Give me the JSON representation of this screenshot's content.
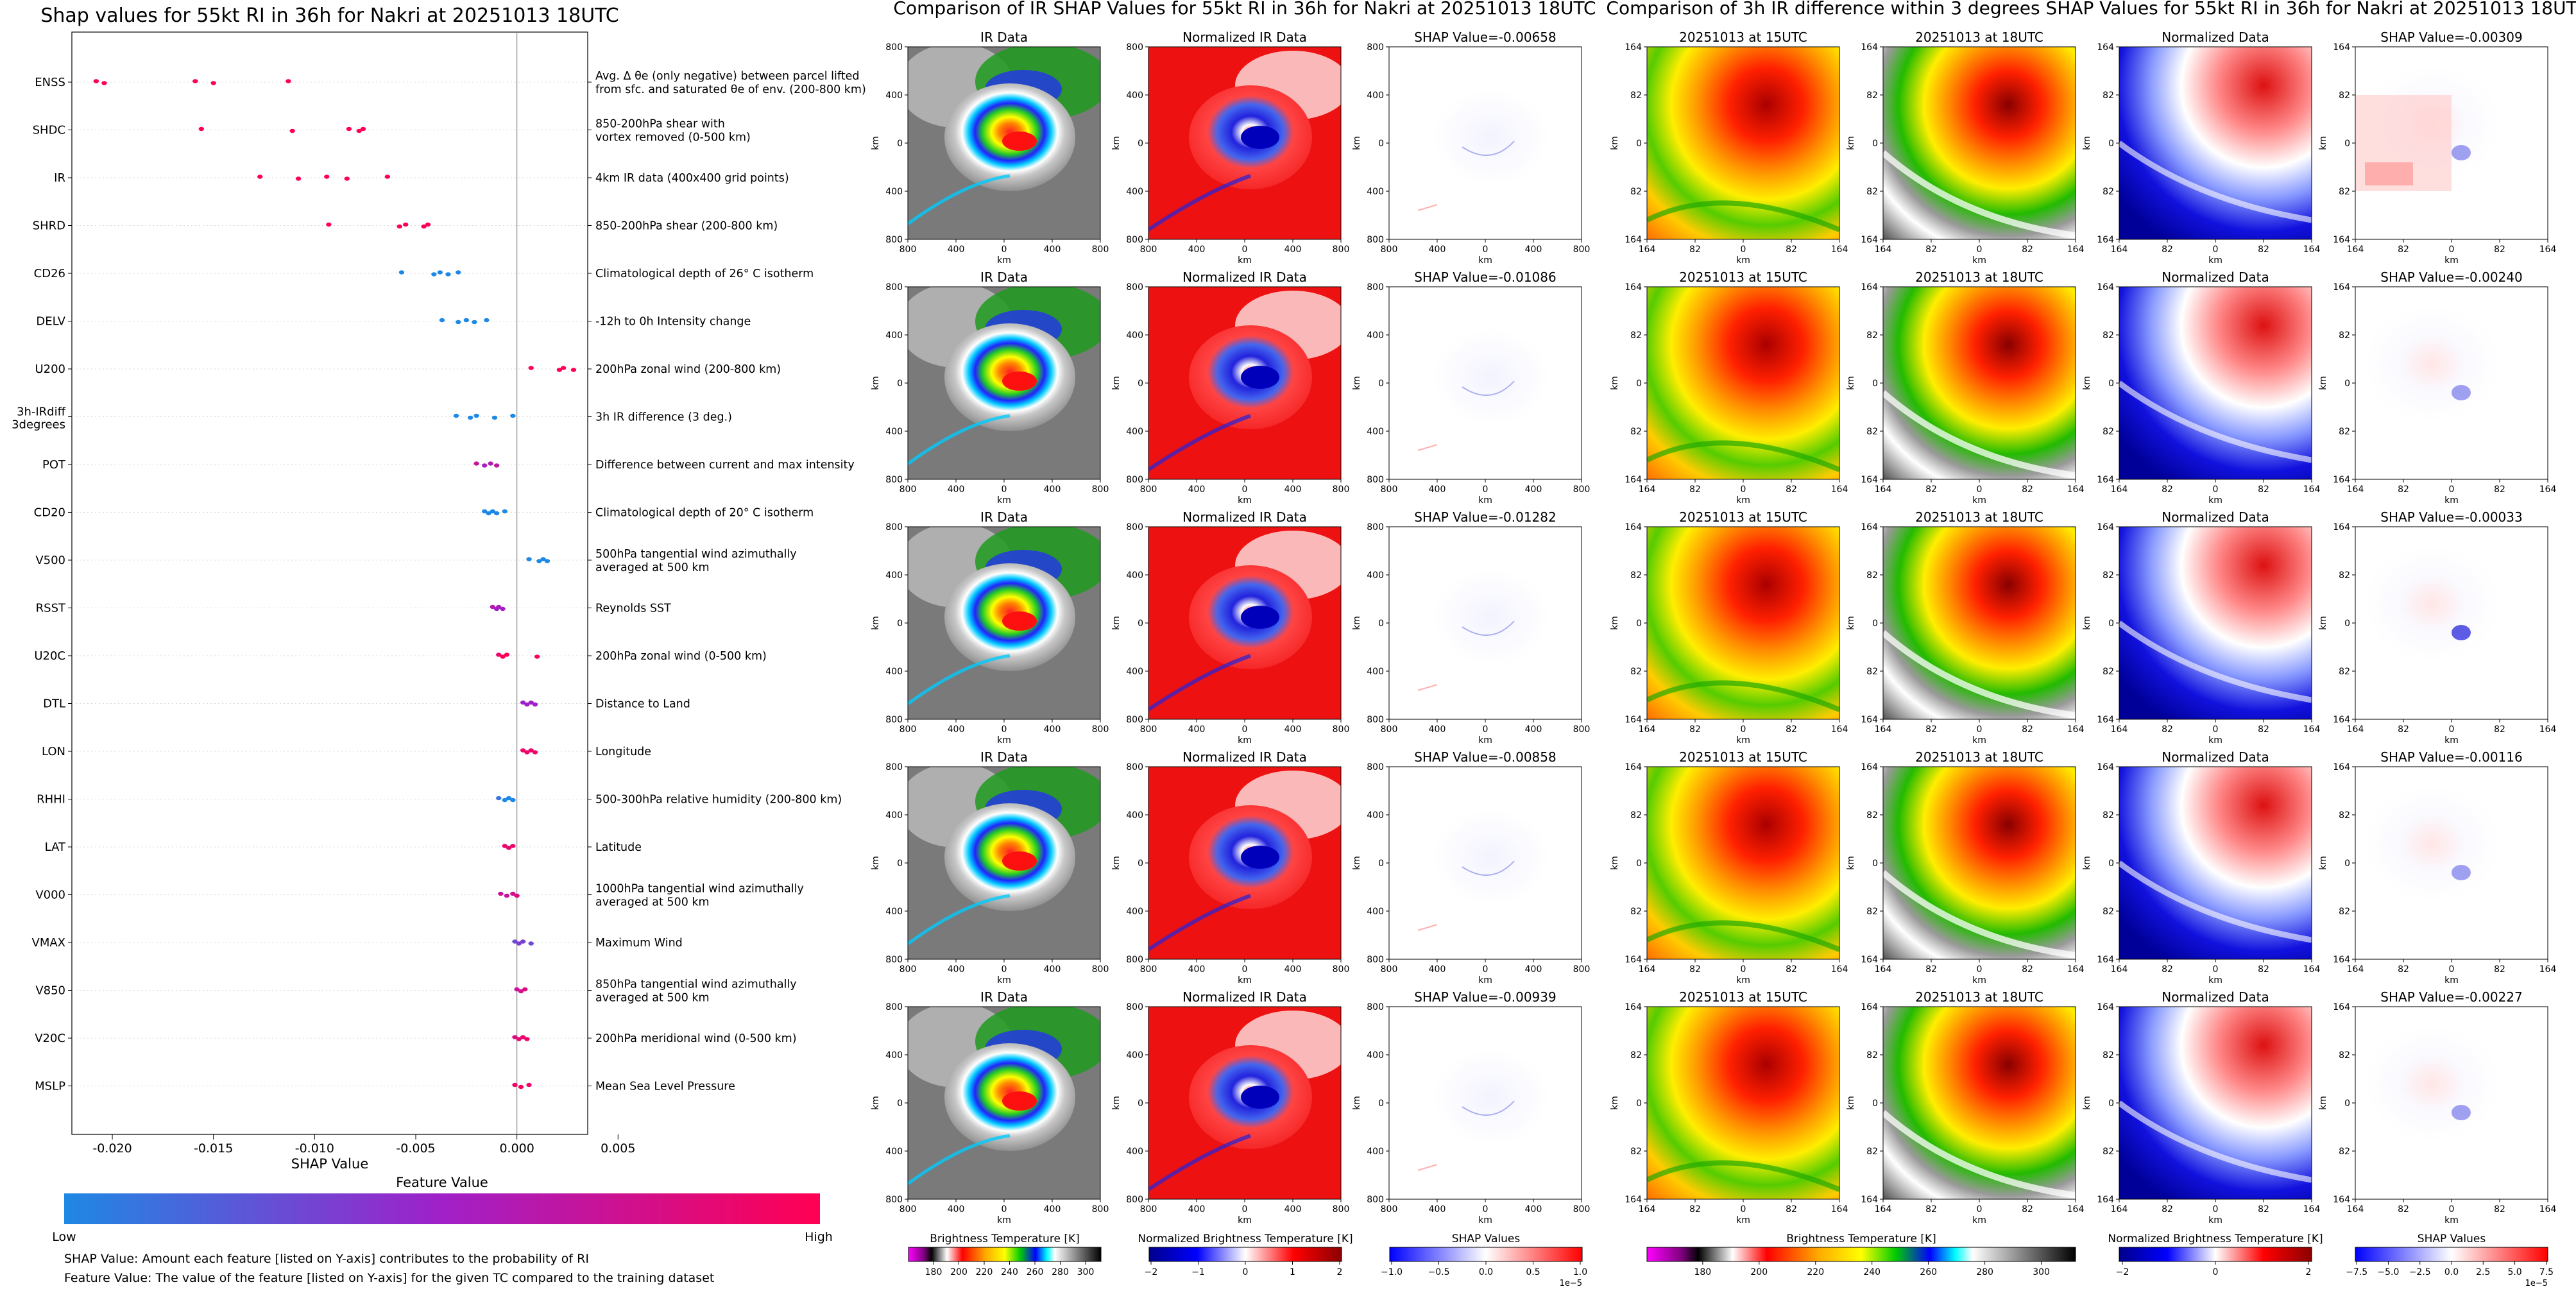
{
  "summary": {
    "title": "Shap values for 55kt RI in 36h for Nakri at 20251013 18UTC",
    "xlabel": "SHAP Value",
    "xticks": [
      "-0.020",
      "-0.015",
      "-0.010",
      "-0.005",
      "0.000",
      "0.005"
    ],
    "colorbar_title": "Feature Value",
    "colorbar_low": "Low",
    "colorbar_high": "High",
    "note_shap": "SHAP Value: Amount each feature [listed on Y-axis] contributes to the probability of RI",
    "note_feature": "Feature Value: The value of the feature [listed on Y-axis] for the given TC compared to the training dataset",
    "colors": {
      "low": "#1e88e5",
      "mid": "#a020c8",
      "high": "#ff0052"
    }
  },
  "chart_data": {
    "type": "scatter",
    "title": "Shap values for 55kt RI in 36h for Nakri at 20251013 18UTC",
    "xlabel": "SHAP Value",
    "xlim": [
      -0.022,
      0.0035
    ],
    "features": [
      {
        "name": "ENSS",
        "desc": [
          "Avg. Δ θe (only negative) between parcel lifted",
          "from sfc. and saturated θe of env. (200-800 km)"
        ],
        "points": [
          {
            "x": -0.0208,
            "v": 1.0
          },
          {
            "x": -0.0204,
            "v": 1.0
          },
          {
            "x": -0.0159,
            "v": 1.0
          },
          {
            "x": -0.015,
            "v": 1.0
          },
          {
            "x": -0.0113,
            "v": 1.0
          }
        ]
      },
      {
        "name": "SHDC",
        "desc": [
          "850-200hPa shear with",
          "vortex removed (0-500 km)"
        ],
        "points": [
          {
            "x": -0.0156,
            "v": 1.0
          },
          {
            "x": -0.0111,
            "v": 1.0
          },
          {
            "x": -0.0083,
            "v": 1.0
          },
          {
            "x": -0.0078,
            "v": 1.0
          },
          {
            "x": -0.0076,
            "v": 1.0
          }
        ]
      },
      {
        "name": "IR",
        "desc": [
          "4km IR data (400x400 grid points)"
        ],
        "points": [
          {
            "x": -0.0127,
            "v": 1.0
          },
          {
            "x": -0.0108,
            "v": 1.0
          },
          {
            "x": -0.0094,
            "v": 1.0
          },
          {
            "x": -0.0084,
            "v": 1.0
          },
          {
            "x": -0.0064,
            "v": 1.0
          }
        ]
      },
      {
        "name": "SHRD",
        "desc": [
          "850-200hPa shear (200-800 km)"
        ],
        "points": [
          {
            "x": -0.0093,
            "v": 1.0
          },
          {
            "x": -0.0058,
            "v": 1.0
          },
          {
            "x": -0.0055,
            "v": 1.0
          },
          {
            "x": -0.0046,
            "v": 1.0
          },
          {
            "x": -0.0044,
            "v": 1.0
          }
        ]
      },
      {
        "name": "CD26",
        "desc": [
          "Climatological depth of 26° C isotherm"
        ],
        "points": [
          {
            "x": -0.0057,
            "v": 0.0
          },
          {
            "x": -0.0041,
            "v": 0.0
          },
          {
            "x": -0.0038,
            "v": 0.0
          },
          {
            "x": -0.0034,
            "v": 0.0
          },
          {
            "x": -0.0029,
            "v": 0.0
          }
        ]
      },
      {
        "name": "DELV",
        "desc": [
          "-12h to 0h Intensity change"
        ],
        "points": [
          {
            "x": -0.0037,
            "v": 0.0
          },
          {
            "x": -0.0029,
            "v": 0.0
          },
          {
            "x": -0.0025,
            "v": 0.0
          },
          {
            "x": -0.0021,
            "v": 0.0
          },
          {
            "x": -0.0015,
            "v": 0.0
          }
        ]
      },
      {
        "name": "U200",
        "desc": [
          "200hPa zonal wind (200-800 km)"
        ],
        "points": [
          {
            "x": 0.0007,
            "v": 1.0
          },
          {
            "x": 0.0021,
            "v": 1.0
          },
          {
            "x": 0.0023,
            "v": 1.0
          },
          {
            "x": 0.0028,
            "v": 1.0
          }
        ]
      },
      {
        "name": "3h-IRdiff 3degrees",
        "desc": [
          "3h IR difference (3 deg.)"
        ],
        "points": [
          {
            "x": -0.003,
            "v": 0.0
          },
          {
            "x": -0.0023,
            "v": 0.0
          },
          {
            "x": -0.002,
            "v": 0.0
          },
          {
            "x": -0.0011,
            "v": 0.0
          },
          {
            "x": -0.0002,
            "v": 0.0
          }
        ]
      },
      {
        "name": "POT",
        "desc": [
          "Difference between current and max intensity"
        ],
        "points": [
          {
            "x": -0.002,
            "v": 0.7
          },
          {
            "x": -0.0016,
            "v": 0.55
          },
          {
            "x": -0.0013,
            "v": 0.6
          },
          {
            "x": -0.001,
            "v": 0.65
          }
        ]
      },
      {
        "name": "CD20",
        "desc": [
          "Climatological depth of 20° C isotherm"
        ],
        "points": [
          {
            "x": -0.0016,
            "v": 0.0
          },
          {
            "x": -0.0014,
            "v": 0.0
          },
          {
            "x": -0.0012,
            "v": 0.0
          },
          {
            "x": -0.001,
            "v": 0.0
          },
          {
            "x": -0.0006,
            "v": 0.0
          }
        ]
      },
      {
        "name": "V500",
        "desc": [
          "500hPa tangential wind azimuthally",
          "averaged at 500 km"
        ],
        "points": [
          {
            "x": 0.0006,
            "v": 0.0
          },
          {
            "x": 0.0011,
            "v": 0.0
          },
          {
            "x": 0.0013,
            "v": 0.0
          },
          {
            "x": 0.0015,
            "v": 0.0
          }
        ]
      },
      {
        "name": "RSST",
        "desc": [
          "Reynolds SST"
        ],
        "points": [
          {
            "x": -0.0012,
            "v": 0.6
          },
          {
            "x": -0.001,
            "v": 0.5
          },
          {
            "x": -0.0009,
            "v": 0.55
          },
          {
            "x": -0.0007,
            "v": 0.5
          }
        ]
      },
      {
        "name": "U20C",
        "desc": [
          "200hPa zonal wind (0-500 km)"
        ],
        "points": [
          {
            "x": -0.0009,
            "v": 0.9
          },
          {
            "x": -0.0007,
            "v": 1.0
          },
          {
            "x": -0.0005,
            "v": 1.0
          },
          {
            "x": 0.001,
            "v": 1.0
          }
        ]
      },
      {
        "name": "DTL",
        "desc": [
          "Distance to Land"
        ],
        "points": [
          {
            "x": 0.0003,
            "v": 0.5
          },
          {
            "x": 0.0005,
            "v": 0.5
          },
          {
            "x": 0.0007,
            "v": 0.5
          },
          {
            "x": 0.0009,
            "v": 0.5
          }
        ]
      },
      {
        "name": "LON",
        "desc": [
          "Longitude"
        ],
        "points": [
          {
            "x": 0.0003,
            "v": 0.9
          },
          {
            "x": 0.0005,
            "v": 0.9
          },
          {
            "x": 0.0007,
            "v": 0.9
          },
          {
            "x": 0.0009,
            "v": 0.9
          }
        ]
      },
      {
        "name": "RHHI",
        "desc": [
          "500-300hPa relative humidity (200-800 km)"
        ],
        "points": [
          {
            "x": -0.0009,
            "v": 0.1
          },
          {
            "x": -0.0006,
            "v": 0.0
          },
          {
            "x": -0.0004,
            "v": 0.0
          },
          {
            "x": -0.0002,
            "v": 0.0
          }
        ]
      },
      {
        "name": "LAT",
        "desc": [
          "Latitude"
        ],
        "points": [
          {
            "x": -0.0006,
            "v": 0.9
          },
          {
            "x": -0.0004,
            "v": 0.9
          },
          {
            "x": -0.0002,
            "v": 0.9
          }
        ]
      },
      {
        "name": "V000",
        "desc": [
          "1000hPa tangential wind azimuthally",
          "averaged at 500 km"
        ],
        "points": [
          {
            "x": -0.0008,
            "v": 0.7
          },
          {
            "x": -0.0005,
            "v": 0.7
          },
          {
            "x": -0.0002,
            "v": 0.75
          },
          {
            "x": 0.0,
            "v": 0.8
          }
        ]
      },
      {
        "name": "VMAX",
        "desc": [
          "Maximum Wind"
        ],
        "points": [
          {
            "x": -0.0001,
            "v": 0.3
          },
          {
            "x": 0.0001,
            "v": 0.35
          },
          {
            "x": 0.0003,
            "v": 0.35
          },
          {
            "x": 0.0007,
            "v": 0.3
          }
        ]
      },
      {
        "name": "V850",
        "desc": [
          "850hPa tangential wind azimuthally",
          "averaged at 500 km"
        ],
        "points": [
          {
            "x": 0.0,
            "v": 0.7
          },
          {
            "x": 0.0002,
            "v": 0.75
          },
          {
            "x": 0.0004,
            "v": 0.8
          }
        ]
      },
      {
        "name": "V20C",
        "desc": [
          "200hPa meridional wind (0-500 km)"
        ],
        "points": [
          {
            "x": -0.0001,
            "v": 0.8
          },
          {
            "x": 0.0001,
            "v": 0.85
          },
          {
            "x": 0.0003,
            "v": 0.9
          },
          {
            "x": 0.0005,
            "v": 0.9
          }
        ]
      },
      {
        "name": "MSLP",
        "desc": [
          "Mean Sea Level Pressure"
        ],
        "points": [
          {
            "x": -0.0001,
            "v": 0.9
          },
          {
            "x": 0.0002,
            "v": 0.95
          },
          {
            "x": 0.0006,
            "v": 0.9
          }
        ]
      }
    ]
  },
  "ir_panel": {
    "title": "Comparison of IR SHAP Values for 55kt RI in 36h for Nakri at 20251013 18UTC",
    "col_titles": [
      "IR Data",
      "Normalized IR Data"
    ],
    "shap_titles": [
      "SHAP Value=-0.00658",
      "SHAP Value=-0.01086",
      "SHAP Value=-0.01282",
      "SHAP Value=-0.00858",
      "SHAP Value=-0.00939"
    ],
    "axis_label": "km",
    "yticks": [
      "800",
      "400",
      "0",
      "400",
      "800"
    ],
    "xticks": [
      "800",
      "400",
      "0",
      "400",
      "800"
    ],
    "colorbars": [
      {
        "title": "Brightness Temperature [K]",
        "ticks": [
          "180",
          "200",
          "220",
          "240",
          "260",
          "280",
          "300"
        ]
      },
      {
        "title": "Normalized Brightness Temperature [K]",
        "ticks": [
          "−2",
          "−1",
          "0",
          "1",
          "2"
        ]
      },
      {
        "title": "SHAP Values",
        "ticks": [
          "−1.0",
          "−0.5",
          "0.0",
          "0.5",
          "1.0"
        ],
        "exponent": "1e−5"
      }
    ]
  },
  "diff_panel": {
    "title": "Comparison of 3h IR difference within 3 degrees SHAP Values for 55kt RI in 36h for Nakri at 20251013 18UTC",
    "col_titles": [
      "20251013 at 15UTC",
      "20251013 at 18UTC",
      "Normalized Data"
    ],
    "shap_titles": [
      "SHAP Value=-0.00309",
      "SHAP Value=-0.00240",
      "SHAP Value=-0.00033",
      "SHAP Value=-0.00116",
      "SHAP Value=-0.00227"
    ],
    "axis_label": "km",
    "yticks": [
      "164",
      "82",
      "0",
      "82",
      "164"
    ],
    "xticks": [
      "164",
      "82",
      "0",
      "82",
      "164"
    ],
    "colorbars": [
      {
        "title": "Brightness Temperature [K]",
        "ticks": [
          "180",
          "200",
          "220",
          "240",
          "260",
          "280",
          "300"
        ]
      },
      {
        "title": "Normalized Brightness Temperature [K]",
        "ticks": [
          "−2",
          "0",
          "2"
        ]
      },
      {
        "title": "SHAP Values",
        "ticks": [
          "−7.5",
          "−5.0",
          "−2.5",
          "0.0",
          "2.5",
          "5.0",
          "7.5"
        ],
        "exponent": "1e−5"
      }
    ]
  }
}
